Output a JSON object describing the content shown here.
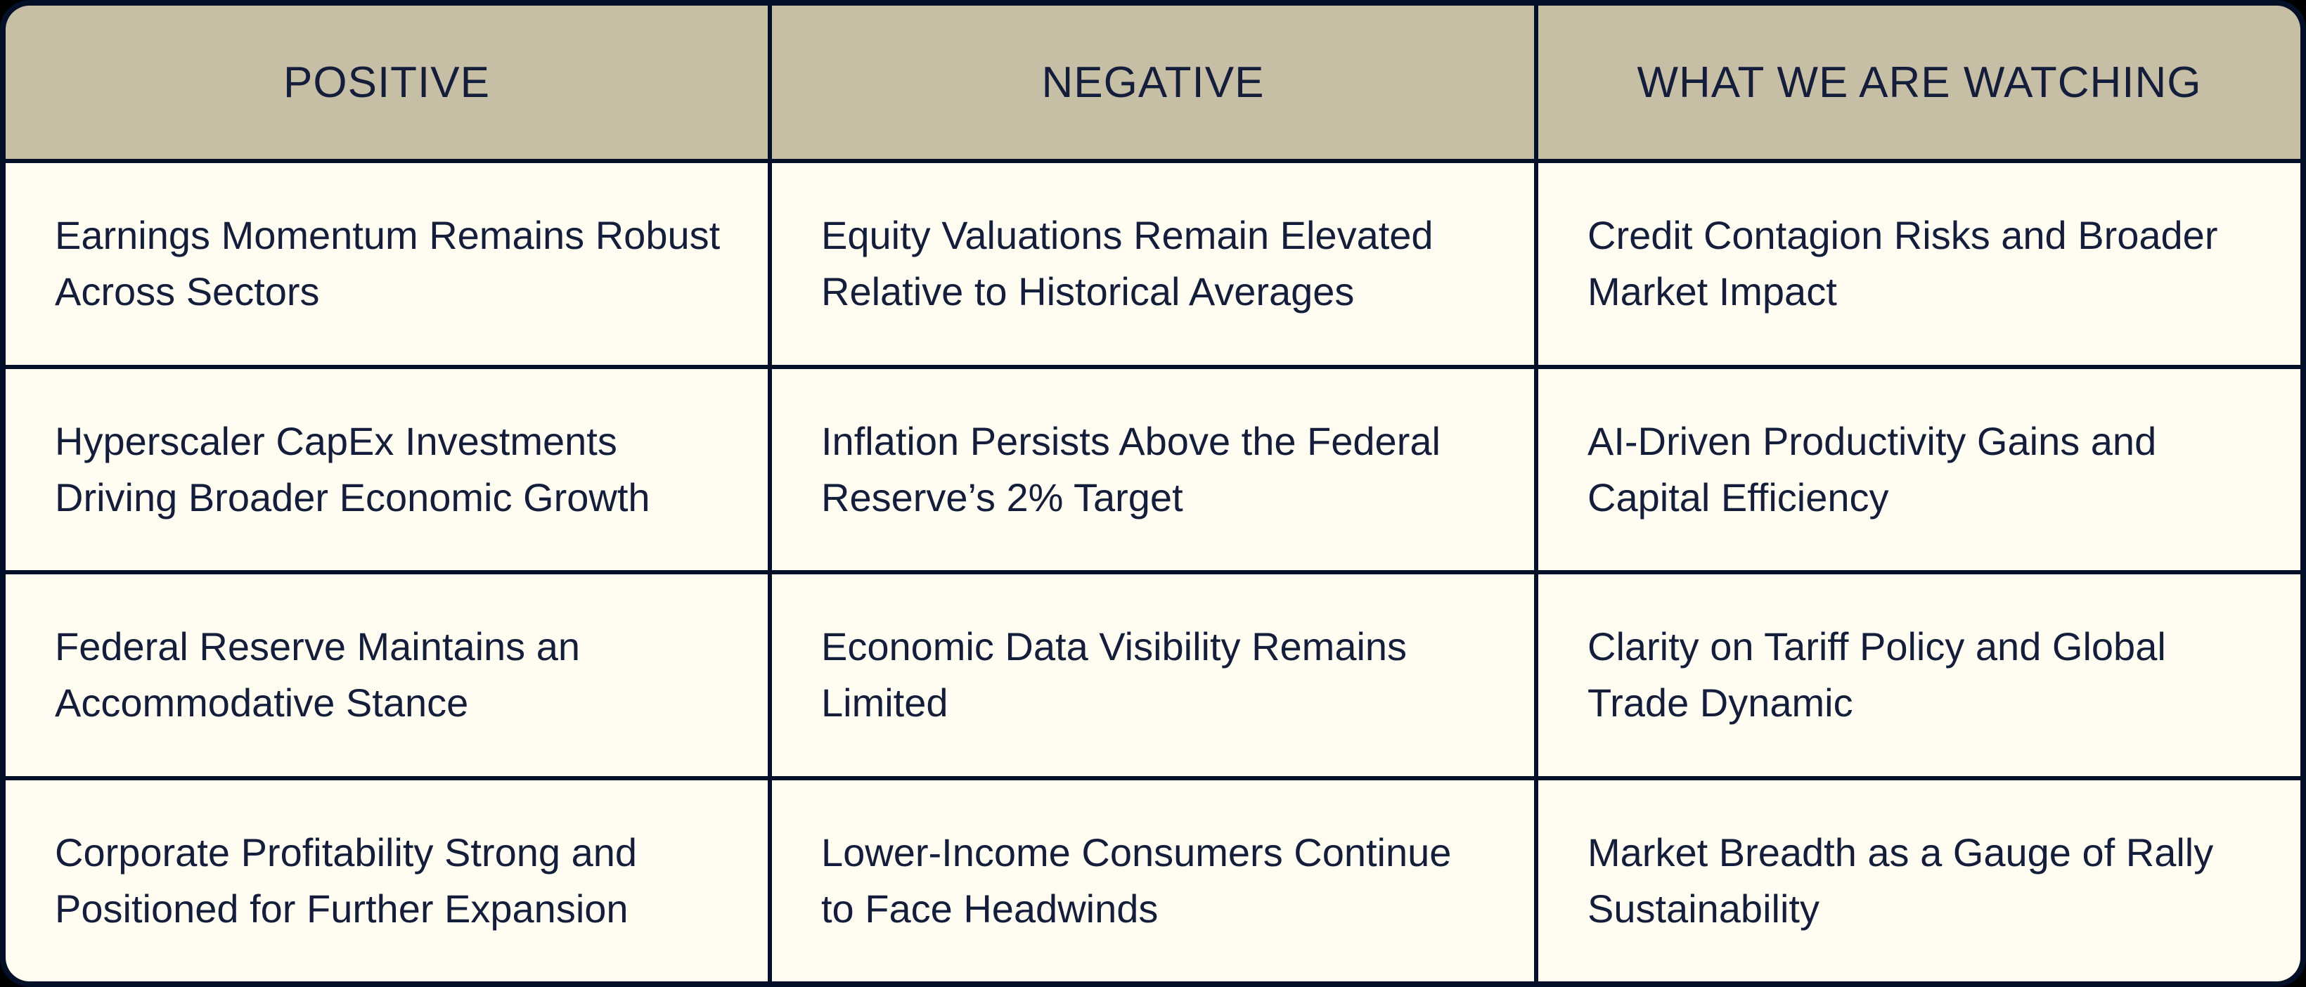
{
  "colors": {
    "page_background": "#000000",
    "grid_border": "#041027",
    "header_background": "#c6bfa6",
    "cell_background": "#fffdf2",
    "text": "#141e3a"
  },
  "table": {
    "columns": [
      {
        "label": "POSITIVE"
      },
      {
        "label": "NEGATIVE"
      },
      {
        "label": "WHAT WE ARE WATCHING"
      }
    ],
    "rows": [
      [
        "Earnings Momentum Remains Robust Across Sectors",
        "Equity Valuations Remain Elevated Relative to Historical Averages",
        "Credit Contagion Risks and Broader Market Impact"
      ],
      [
        "Hyperscaler CapEx Investments Driving Broader Economic Growth",
        "Inflation Persists Above the Federal Reserve’s 2% Target",
        "AI-Driven Productivity Gains and Capital Efficiency"
      ],
      [
        "Federal Reserve Maintains an Accommodative Stance",
        "Economic Data Visibility Remains Limited",
        "Clarity on Tariff Policy and Global Trade Dynamic"
      ],
      [
        "Corporate Profitability Strong and Positioned for Further Expansion",
        "Lower-Income Consumers Continue to Face Headwinds",
        "Market Breadth as a Gauge of Rally Sustainability"
      ]
    ]
  }
}
